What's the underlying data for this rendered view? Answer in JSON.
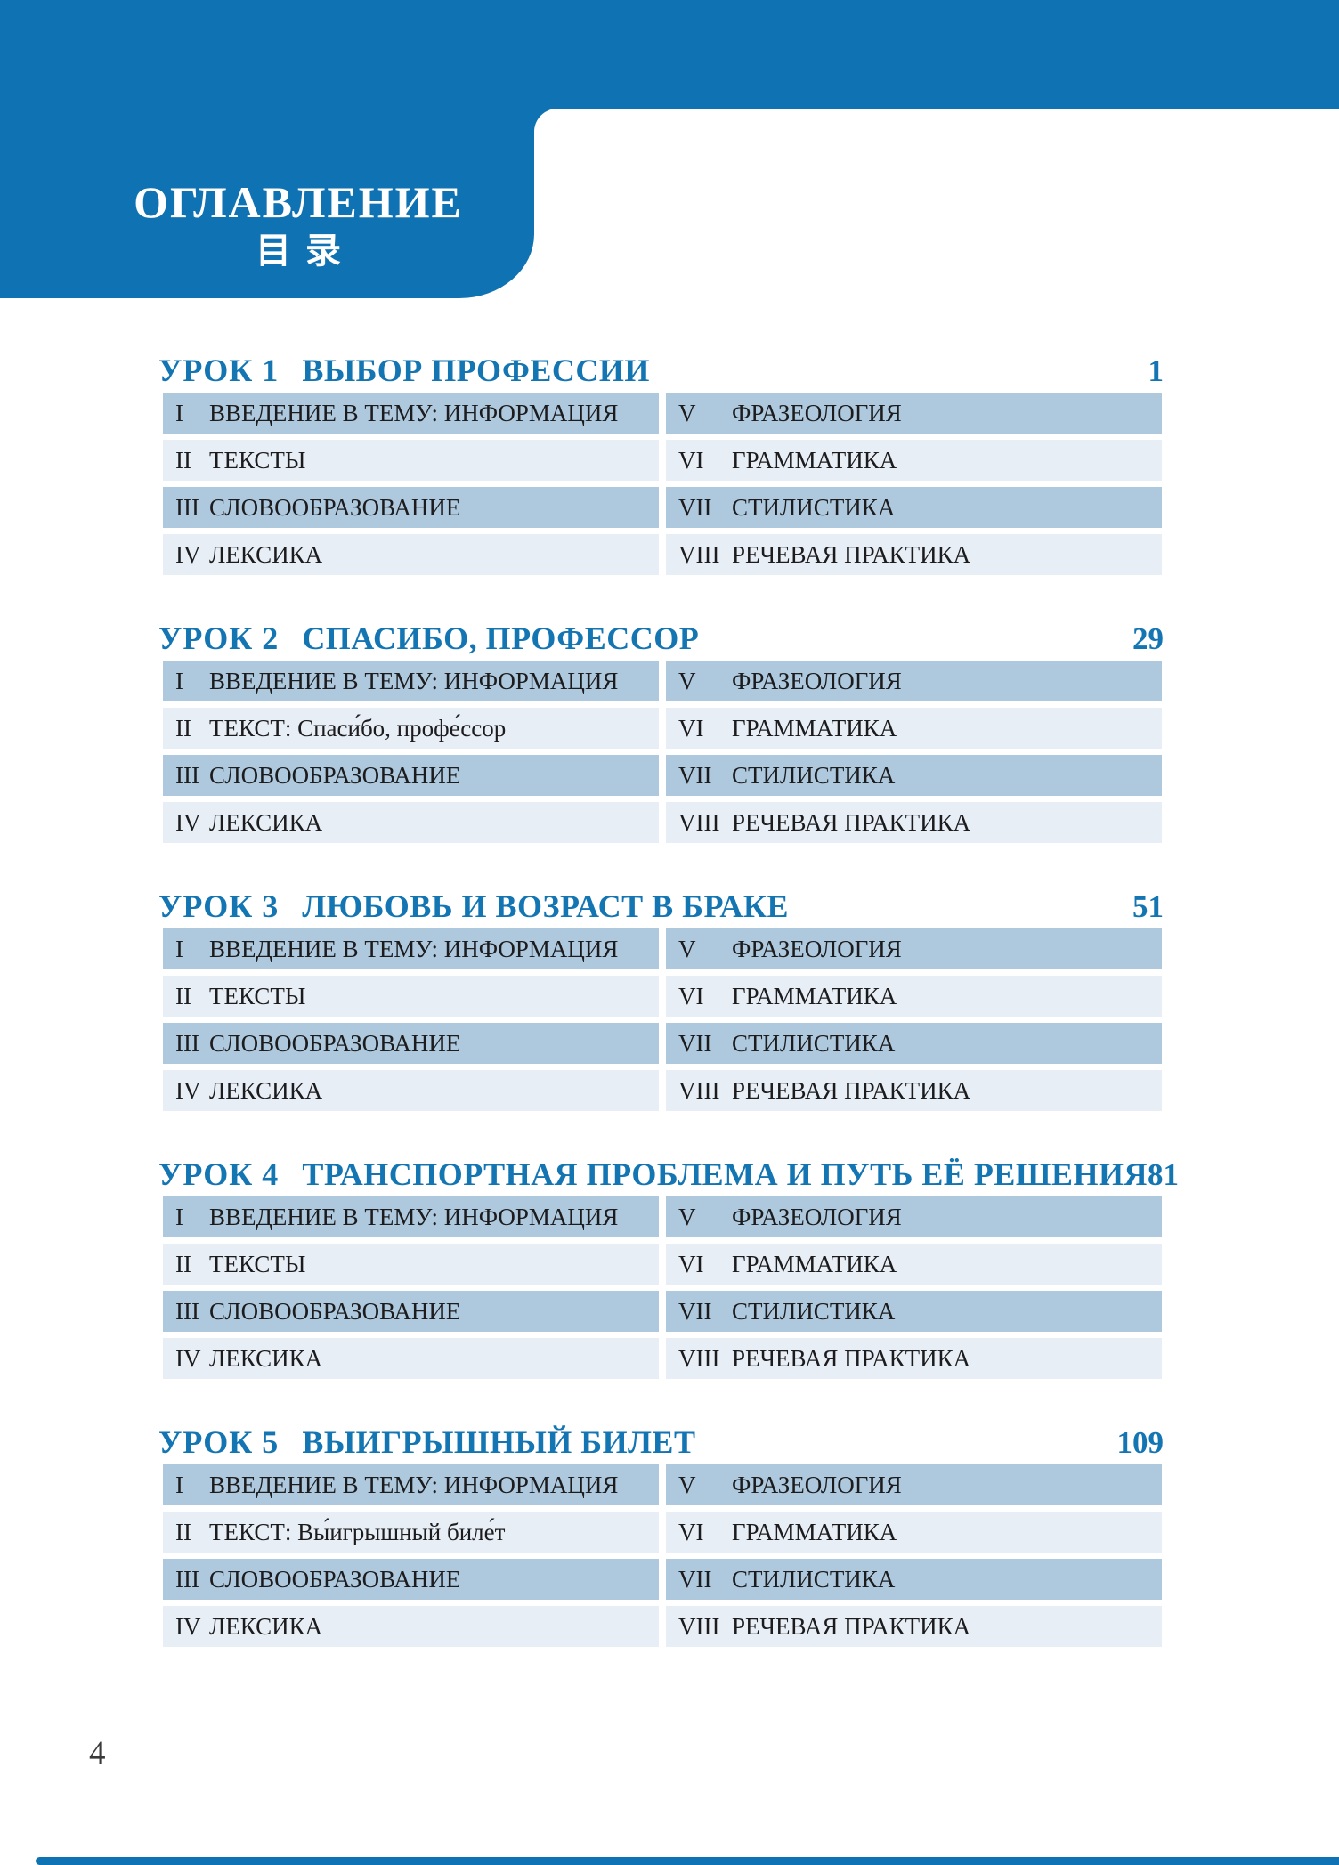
{
  "colors": {
    "brand_blue": "#0f72b2",
    "heading_blue": "#1475b3",
    "row_dark_bg": "#aec9de",
    "row_light_bg": "#e8eef6",
    "row_text": "#1c1c1e",
    "footer_text": "#3a3a3a"
  },
  "header": {
    "title_ru": "ОГЛАВЛЕНИЕ",
    "title_zh": "目录"
  },
  "footer": {
    "page_number": "4"
  },
  "lessons": [
    {
      "label": "УРОК 1",
      "title": "ВЫБОР ПРОФЕССИИ",
      "page": "1",
      "rows": [
        {
          "left_num": "I",
          "left_label": "ВВЕДЕНИЕ В ТЕМУ: ИНФОРМАЦИЯ",
          "right_num": "V",
          "right_label": "ФРАЗЕОЛОГИЯ"
        },
        {
          "left_num": "II",
          "left_label": "ТЕКСТЫ",
          "right_num": "VI",
          "right_label": "ГРАММАТИКА"
        },
        {
          "left_num": "III",
          "left_label": "СЛОВООБРАЗОВАНИЕ",
          "right_num": "VII",
          "right_label": "СТИЛИСТИКА"
        },
        {
          "left_num": "IV",
          "left_label": "ЛЕКСИКА",
          "right_num": "VIII",
          "right_label": "РЕЧЕВАЯ ПРАКТИКА"
        }
      ]
    },
    {
      "label": "УРОК 2",
      "title": "СПАСИБО, ПРОФЕССОР",
      "page": "29",
      "rows": [
        {
          "left_num": "I",
          "left_label": "ВВЕДЕНИЕ В ТЕМУ: ИНФОРМАЦИЯ",
          "right_num": "V",
          "right_label": "ФРАЗЕОЛОГИЯ"
        },
        {
          "left_num": "II",
          "left_label": "ТЕКСТ: Спаси́бо, профе́ссор",
          "right_num": "VI",
          "right_label": "ГРАММАТИКА"
        },
        {
          "left_num": "III",
          "left_label": "СЛОВООБРАЗОВАНИЕ",
          "right_num": "VII",
          "right_label": "СТИЛИСТИКА"
        },
        {
          "left_num": "IV",
          "left_label": "ЛЕКСИКА",
          "right_num": "VIII",
          "right_label": "РЕЧЕВАЯ ПРАКТИКА"
        }
      ]
    },
    {
      "label": "УРОК 3",
      "title": "ЛЮБОВЬ И ВОЗРАСТ В БРАКЕ",
      "page": "51",
      "rows": [
        {
          "left_num": "I",
          "left_label": "ВВЕДЕНИЕ В ТЕМУ: ИНФОРМАЦИЯ",
          "right_num": "V",
          "right_label": "ФРАЗЕОЛОГИЯ"
        },
        {
          "left_num": "II",
          "left_label": "ТЕКСТЫ",
          "right_num": "VI",
          "right_label": "ГРАММАТИКА"
        },
        {
          "left_num": "III",
          "left_label": "СЛОВООБРАЗОВАНИЕ",
          "right_num": "VII",
          "right_label": "СТИЛИСТИКА"
        },
        {
          "left_num": "IV",
          "left_label": "ЛЕКСИКА",
          "right_num": "VIII",
          "right_label": "РЕЧЕВАЯ ПРАКТИКА"
        }
      ]
    },
    {
      "label": "УРОК 4",
      "title": "ТРАНСПОРТНАЯ ПРОБЛЕМА И ПУТЬ ЕЁ РЕШЕНИЯ",
      "page": "81",
      "rows": [
        {
          "left_num": "I",
          "left_label": "ВВЕДЕНИЕ В ТЕМУ: ИНФОРМАЦИЯ",
          "right_num": "V",
          "right_label": "ФРАЗЕОЛОГИЯ"
        },
        {
          "left_num": "II",
          "left_label": "ТЕКСТЫ",
          "right_num": "VI",
          "right_label": "ГРАММАТИКА"
        },
        {
          "left_num": "III",
          "left_label": "СЛОВООБРАЗОВАНИЕ",
          "right_num": "VII",
          "right_label": "СТИЛИСТИКА"
        },
        {
          "left_num": "IV",
          "left_label": "ЛЕКСИКА",
          "right_num": "VIII",
          "right_label": "РЕЧЕВАЯ ПРАКТИКА"
        }
      ]
    },
    {
      "label": "УРОК 5",
      "title": "ВЫИГРЫШНЫЙ БИЛЕТ",
      "page": "109",
      "rows": [
        {
          "left_num": "I",
          "left_label": "ВВЕДЕНИЕ В ТЕМУ: ИНФОРМАЦИЯ",
          "right_num": "V",
          "right_label": "ФРАЗЕОЛОГИЯ"
        },
        {
          "left_num": "II",
          "left_label": "ТЕКСТ: Вы́игрышный биле́т",
          "right_num": "VI",
          "right_label": "ГРАММАТИКА"
        },
        {
          "left_num": "III",
          "left_label": "СЛОВООБРАЗОВАНИЕ",
          "right_num": "VII",
          "right_label": "СТИЛИСТИКА"
        },
        {
          "left_num": "IV",
          "left_label": "ЛЕКСИКА",
          "right_num": "VIII",
          "right_label": "РЕЧЕВАЯ ПРАКТИКА"
        }
      ]
    }
  ]
}
